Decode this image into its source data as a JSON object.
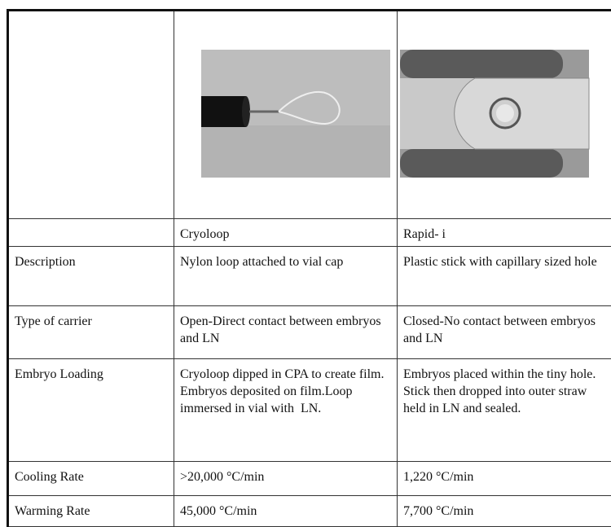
{
  "table": {
    "columns": [
      "Cryoloop",
      "Rapid- i"
    ],
    "rows": [
      {
        "label": "Description",
        "cells": [
          "Nylon loop attached to vial cap",
          "Plastic stick with capillary sized hole"
        ]
      },
      {
        "label": "Type of carrier",
        "cells": [
          "Open-Direct contact between embryos and LN",
          "Closed-No contact between embryos and LN"
        ]
      },
      {
        "label": "Embryo Loading",
        "cells": [
          "Cryoloop dipped in CPA to create film.  Embryos deposited on film.Loop immersed in vial with  LN.",
          "Embryos placed within the tiny hole. Stick then dropped into outer straw  held in LN and sealed."
        ]
      },
      {
        "label": "Cooling Rate",
        "cells": [
          ">20,000 °C/min",
          "1,220 °C/min"
        ]
      },
      {
        "label": "Warming Rate",
        "cells": [
          "45,000 °C/min",
          "7,700 °C/min"
        ]
      }
    ]
  }
}
